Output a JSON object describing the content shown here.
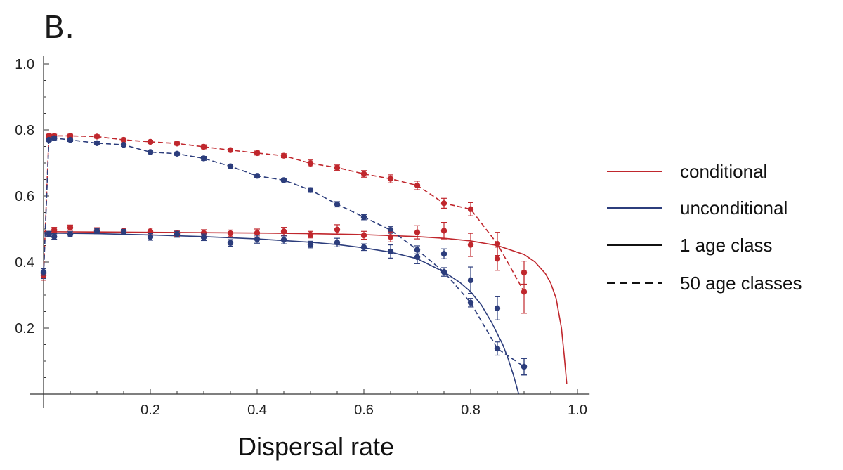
{
  "panel_label": "B.",
  "colors": {
    "conditional": "#c0272d",
    "unconditional": "#2c3d7c",
    "axis": "#333333",
    "legend_black": "#111111"
  },
  "chart_data": {
    "type": "line",
    "title": "",
    "xlabel": "Dispersal rate",
    "ylabel": "",
    "xlim": [
      0,
      1.02
    ],
    "ylim": [
      0,
      1.02
    ],
    "x_ticks": [
      0.2,
      0.4,
      0.6,
      0.8,
      1.0
    ],
    "x_tick_labels": [
      "0.2",
      "0.4",
      "0.6",
      "0.8",
      "1.0"
    ],
    "y_ticks": [
      0.2,
      0.4,
      0.6,
      0.8,
      1.0
    ],
    "y_tick_labels": [
      "0.2",
      "0.4",
      "0.6",
      "0.8",
      "1.0"
    ],
    "legend": {
      "placement": "right",
      "entries": [
        {
          "label": "conditional",
          "style": "solid",
          "color": "conditional"
        },
        {
          "label": "unconditional",
          "style": "solid",
          "color": "unconditional"
        },
        {
          "label": "1 age class",
          "style": "solid",
          "color": "legend_black"
        },
        {
          "label": "50 age classes",
          "style": "dashed",
          "color": "legend_black"
        }
      ]
    },
    "series": [
      {
        "group": "conditional",
        "kind": "1 age class",
        "line": "solid",
        "x": [
          0,
          0.1,
          0.2,
          0.3,
          0.4,
          0.5,
          0.6,
          0.7,
          0.75,
          0.8,
          0.85,
          0.9,
          0.92,
          0.94,
          0.95,
          0.96,
          0.97,
          0.975,
          0.98
        ],
        "y": [
          0.492,
          0.491,
          0.49,
          0.489,
          0.488,
          0.486,
          0.483,
          0.477,
          0.472,
          0.464,
          0.45,
          0.423,
          0.401,
          0.365,
          0.336,
          0.29,
          0.2,
          0.12,
          0.03
        ]
      },
      {
        "group": "unconditional",
        "kind": "1 age class",
        "line": "solid",
        "x": [
          0,
          0.1,
          0.2,
          0.3,
          0.4,
          0.5,
          0.55,
          0.6,
          0.65,
          0.7,
          0.75,
          0.78,
          0.8,
          0.82,
          0.84,
          0.86,
          0.87,
          0.88,
          0.89
        ],
        "y": [
          0.488,
          0.486,
          0.482,
          0.477,
          0.47,
          0.46,
          0.453,
          0.443,
          0.43,
          0.41,
          0.37,
          0.338,
          0.31,
          0.27,
          0.215,
          0.15,
          0.108,
          0.058,
          0.0
        ]
      },
      {
        "group": "conditional",
        "kind": "50 age classes",
        "line": "dashed",
        "x": [
          0,
          0.01,
          0.02,
          0.05,
          0.1,
          0.15,
          0.2,
          0.25,
          0.3,
          0.35,
          0.4,
          0.45,
          0.5,
          0.55,
          0.6,
          0.65,
          0.7,
          0.75,
          0.8,
          0.85,
          0.9
        ],
        "y": [
          0.365,
          0.782,
          0.782,
          0.782,
          0.78,
          0.77,
          0.764,
          0.759,
          0.749,
          0.739,
          0.73,
          0.722,
          0.699,
          0.686,
          0.667,
          0.652,
          0.632,
          0.578,
          0.56,
          0.455,
          0.31
        ],
        "err": [
          0.01,
          0.005,
          0.005,
          0.005,
          0.005,
          0.006,
          0.005,
          0.005,
          0.006,
          0.006,
          0.006,
          0.006,
          0.01,
          0.008,
          0.01,
          0.012,
          0.013,
          0.015,
          0.02,
          0.035,
          0.065
        ]
      },
      {
        "group": "unconditional",
        "kind": "50 age classes",
        "line": "dashed",
        "x": [
          0,
          0.01,
          0.02,
          0.05,
          0.1,
          0.15,
          0.2,
          0.25,
          0.3,
          0.35,
          0.4,
          0.45,
          0.5,
          0.55,
          0.6,
          0.65,
          0.7,
          0.75,
          0.8,
          0.85,
          0.9
        ],
        "y": [
          0.36,
          0.77,
          0.775,
          0.77,
          0.76,
          0.755,
          0.733,
          0.728,
          0.714,
          0.69,
          0.661,
          0.648,
          0.618,
          0.575,
          0.536,
          0.497,
          0.437,
          0.37,
          0.277,
          0.138,
          0.083
        ],
        "err": [
          0.01,
          0.005,
          0.005,
          0.005,
          0.005,
          0.005,
          0.005,
          0.005,
          0.006,
          0.005,
          0.005,
          0.005,
          0.007,
          0.008,
          0.008,
          0.01,
          0.012,
          0.013,
          0.013,
          0.02,
          0.025
        ]
      },
      {
        "group": "conditional",
        "kind": "1 age class",
        "line": "none",
        "x": [
          0,
          0.01,
          0.02,
          0.05,
          0.1,
          0.15,
          0.2,
          0.25,
          0.3,
          0.35,
          0.4,
          0.45,
          0.5,
          0.55,
          0.6,
          0.65,
          0.7,
          0.75,
          0.8,
          0.85,
          0.9
        ],
        "y": [
          0.36,
          0.485,
          0.497,
          0.504,
          0.496,
          0.495,
          0.493,
          0.487,
          0.488,
          0.487,
          0.488,
          0.493,
          0.483,
          0.498,
          0.481,
          0.476,
          0.49,
          0.495,
          0.452,
          0.41,
          0.368
        ],
        "err": [
          0.015,
          0.008,
          0.008,
          0.008,
          0.008,
          0.008,
          0.01,
          0.009,
          0.01,
          0.01,
          0.012,
          0.012,
          0.01,
          0.015,
          0.012,
          0.015,
          0.02,
          0.025,
          0.035,
          0.035,
          0.035
        ]
      },
      {
        "group": "unconditional",
        "kind": "1 age class",
        "line": "none",
        "x": [
          0,
          0.01,
          0.02,
          0.05,
          0.1,
          0.15,
          0.2,
          0.25,
          0.3,
          0.35,
          0.4,
          0.45,
          0.5,
          0.55,
          0.6,
          0.65,
          0.7,
          0.75,
          0.8,
          0.85,
          0.9
        ],
        "y": [
          0.37,
          0.485,
          0.477,
          0.484,
          0.494,
          0.491,
          0.476,
          0.484,
          0.475,
          0.458,
          0.469,
          0.467,
          0.453,
          0.459,
          0.445,
          0.432,
          0.415,
          0.425,
          0.345,
          0.26,
          0.083
        ],
        "err": [
          0.01,
          0.008,
          0.008,
          0.008,
          0.008,
          0.008,
          0.01,
          0.009,
          0.01,
          0.01,
          0.012,
          0.012,
          0.01,
          0.013,
          0.01,
          0.02,
          0.02,
          0.015,
          0.04,
          0.035,
          0.025
        ]
      }
    ]
  }
}
